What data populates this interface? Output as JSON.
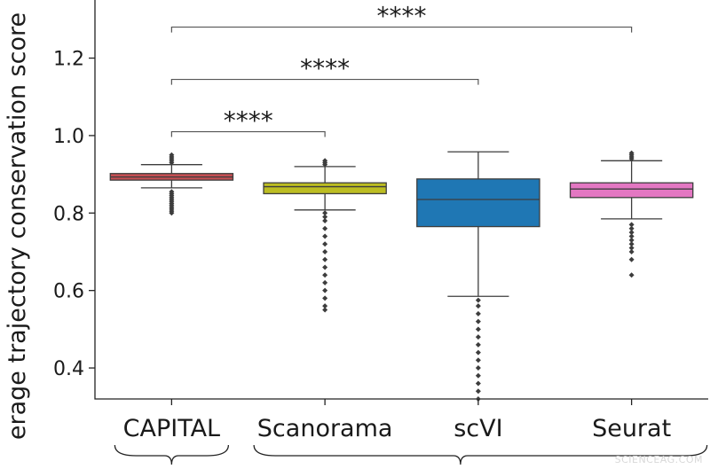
{
  "chart_data": {
    "type": "box",
    "ylabel": "erage trajectory conservation score",
    "ylim": [
      0.32,
      1.35
    ],
    "yticks": [
      0.4,
      0.6,
      0.8,
      1.0,
      1.2
    ],
    "ytick_labels": [
      "0.4",
      "0.6",
      "0.8",
      "1.0",
      "1.2"
    ],
    "grid": false,
    "categories": [
      "CAPITAL",
      "Scanorama",
      "scVI",
      "Seurat"
    ],
    "boxes": [
      {
        "name": "CAPITAL",
        "color": "#c44e52",
        "whisker_low": 0.865,
        "q1": 0.885,
        "median": 0.893,
        "q3": 0.902,
        "whisker_high": 0.925,
        "outliers": [
          0.8,
          0.805,
          0.81,
          0.815,
          0.82,
          0.825,
          0.83,
          0.835,
          0.84,
          0.845,
          0.85,
          0.855,
          0.93,
          0.935,
          0.94,
          0.945,
          0.95
        ]
      },
      {
        "name": "Scanorama",
        "color": "#bcbd22",
        "whisker_low": 0.808,
        "q1": 0.85,
        "median": 0.868,
        "q3": 0.878,
        "whisker_high": 0.92,
        "outliers": [
          0.55,
          0.56,
          0.58,
          0.6,
          0.62,
          0.64,
          0.66,
          0.68,
          0.7,
          0.72,
          0.74,
          0.76,
          0.78,
          0.79,
          0.8,
          0.925,
          0.93,
          0.935
        ]
      },
      {
        "name": "scVI",
        "color": "#1f77b4",
        "whisker_low": 0.585,
        "q1": 0.765,
        "median": 0.835,
        "q3": 0.888,
        "whisker_high": 0.958,
        "outliers": [
          0.32,
          0.34,
          0.36,
          0.38,
          0.4,
          0.42,
          0.44,
          0.46,
          0.48,
          0.5,
          0.52,
          0.54,
          0.56,
          0.575
        ]
      },
      {
        "name": "Seurat",
        "color": "#e377c2",
        "whisker_low": 0.785,
        "q1": 0.84,
        "median": 0.862,
        "q3": 0.878,
        "whisker_high": 0.935,
        "outliers": [
          0.64,
          0.68,
          0.7,
          0.71,
          0.72,
          0.73,
          0.74,
          0.75,
          0.76,
          0.77,
          0.94,
          0.945,
          0.95,
          0.955
        ]
      }
    ],
    "significance": [
      {
        "from": "CAPITAL",
        "to": "Scanorama",
        "y": 1.01,
        "label": "****"
      },
      {
        "from": "CAPITAL",
        "to": "scVI",
        "y": 1.145,
        "label": "****"
      },
      {
        "from": "CAPITAL",
        "to": "Seurat",
        "y": 1.28,
        "label": "****"
      }
    ]
  },
  "watermark": "SCIENCEAG.COM"
}
